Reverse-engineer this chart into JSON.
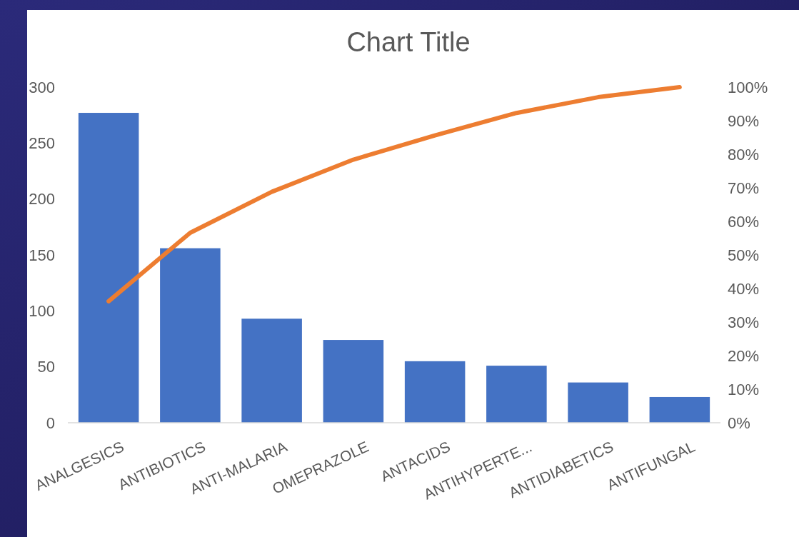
{
  "chart_data": {
    "type": "bar",
    "title": "Chart Title",
    "categories": [
      "ANALGESICS",
      "ANTIBIOTICS",
      "ANTI-MALARIA",
      "OMEPRAZOLE",
      "ANTACIDS",
      "ANTIHYPERTE...",
      "ANTIDIABETICS",
      "ANTIFUNGAL"
    ],
    "series": [
      {
        "color": "#4472c4",
        "values": [
          277,
          156,
          93,
          74,
          55,
          51,
          36,
          23
        ]
      },
      {
        "type": "line",
        "axis": "y2",
        "color": "#ed7d31",
        "values": [
          36.2,
          56.6,
          68.8,
          78.4,
          85.6,
          92.3,
          97.0,
          100
        ]
      }
    ],
    "ylim": [
      0,
      300
    ],
    "yticks": [
      0,
      50,
      100,
      150,
      200,
      250,
      300
    ],
    "y2lim": [
      0,
      100
    ],
    "y2ticks": [
      {
        "value": 0,
        "label": "0%"
      },
      {
        "value": 10,
        "label": "10%"
      },
      {
        "value": 20,
        "label": "20%"
      },
      {
        "value": 30,
        "label": "30%"
      },
      {
        "value": 40,
        "label": "40%"
      },
      {
        "value": 50,
        "label": "50%"
      },
      {
        "value": 60,
        "label": "60%"
      },
      {
        "value": 70,
        "label": "70%"
      },
      {
        "value": 80,
        "label": "80%"
      },
      {
        "value": 90,
        "label": "90%"
      },
      {
        "value": 100,
        "label": "100%"
      }
    ],
    "marker": "none",
    "line_style": "solid"
  }
}
